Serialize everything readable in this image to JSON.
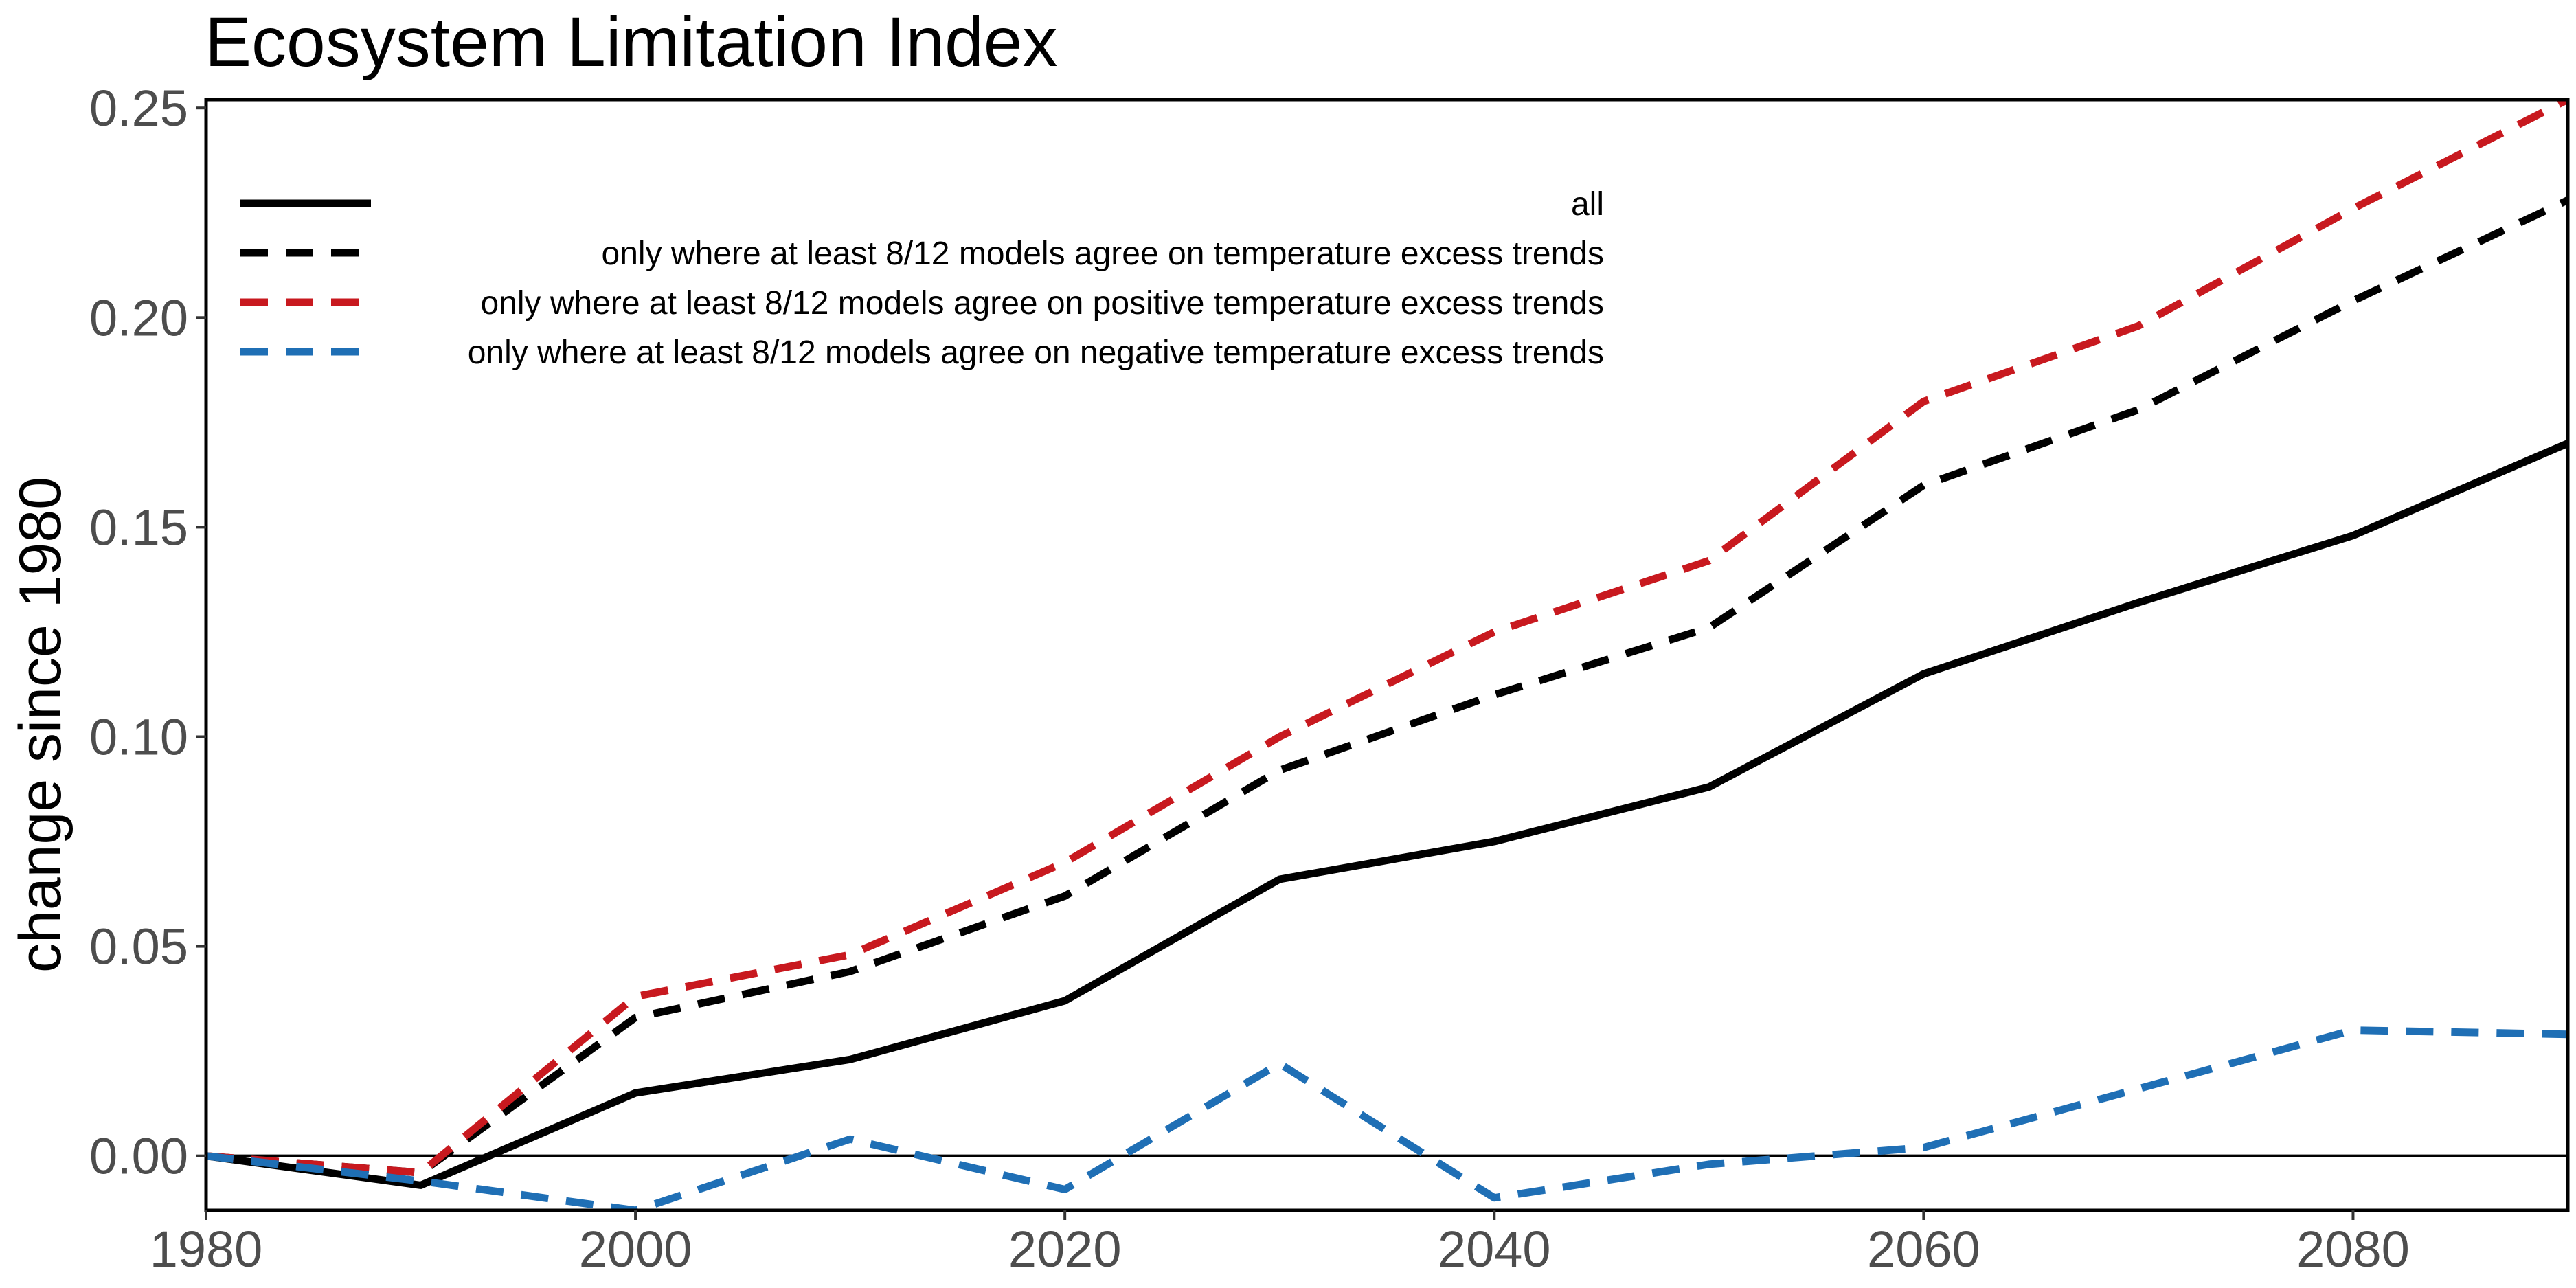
{
  "chart_data": {
    "type": "line",
    "title": "Ecosystem Limitation Index",
    "xlabel": "",
    "ylabel": "change since 1980",
    "xlim": [
      1980,
      2090
    ],
    "ylim": [
      -0.013,
      0.252
    ],
    "xticks": [
      1980,
      2000,
      2020,
      2040,
      2060,
      2080
    ],
    "xtick_labels": [
      "1980",
      "2000",
      "2020",
      "2040",
      "2060",
      "2080"
    ],
    "yticks": [
      0.0,
      0.05,
      0.1,
      0.15,
      0.2,
      0.25
    ],
    "ytick_labels": [
      "0.00",
      "0.05",
      "0.10",
      "0.15",
      "0.20",
      "0.25"
    ],
    "grid": false,
    "reference_line_y": 0.0,
    "legend_position": "top-left",
    "x": [
      1980,
      1990,
      2000,
      2010,
      2020,
      2030,
      2040,
      2050,
      2060,
      2070,
      2080,
      2090
    ],
    "series": [
      {
        "name": "all",
        "color": "#000000",
        "style": "solid",
        "values": [
          0.0,
          -0.007,
          0.015,
          0.023,
          0.037,
          0.066,
          0.075,
          0.088,
          0.115,
          0.132,
          0.148,
          0.17
        ]
      },
      {
        "name": "only where at least 8/12 models agree on temperature excess trends",
        "color": "#000000",
        "style": "dashed",
        "values": [
          0.0,
          -0.004,
          0.033,
          0.044,
          0.062,
          0.092,
          0.11,
          0.126,
          0.16,
          0.178,
          0.204,
          0.228
        ]
      },
      {
        "name": "only where at least 8/12 models agree on positive temperature excess trends",
        "color": "#c8191f",
        "style": "dashed",
        "values": [
          0.0,
          -0.004,
          0.038,
          0.048,
          0.07,
          0.1,
          0.125,
          0.142,
          0.18,
          0.198,
          0.226,
          0.252
        ]
      },
      {
        "name": "only where at least 8/12 models agree on negative temperature excess trends",
        "color": "#1f6fb5",
        "style": "dashed",
        "values": [
          0.0,
          -0.006,
          -0.013,
          0.004,
          -0.008,
          0.022,
          -0.01,
          -0.002,
          0.002,
          0.016,
          0.03,
          0.029
        ]
      }
    ]
  }
}
